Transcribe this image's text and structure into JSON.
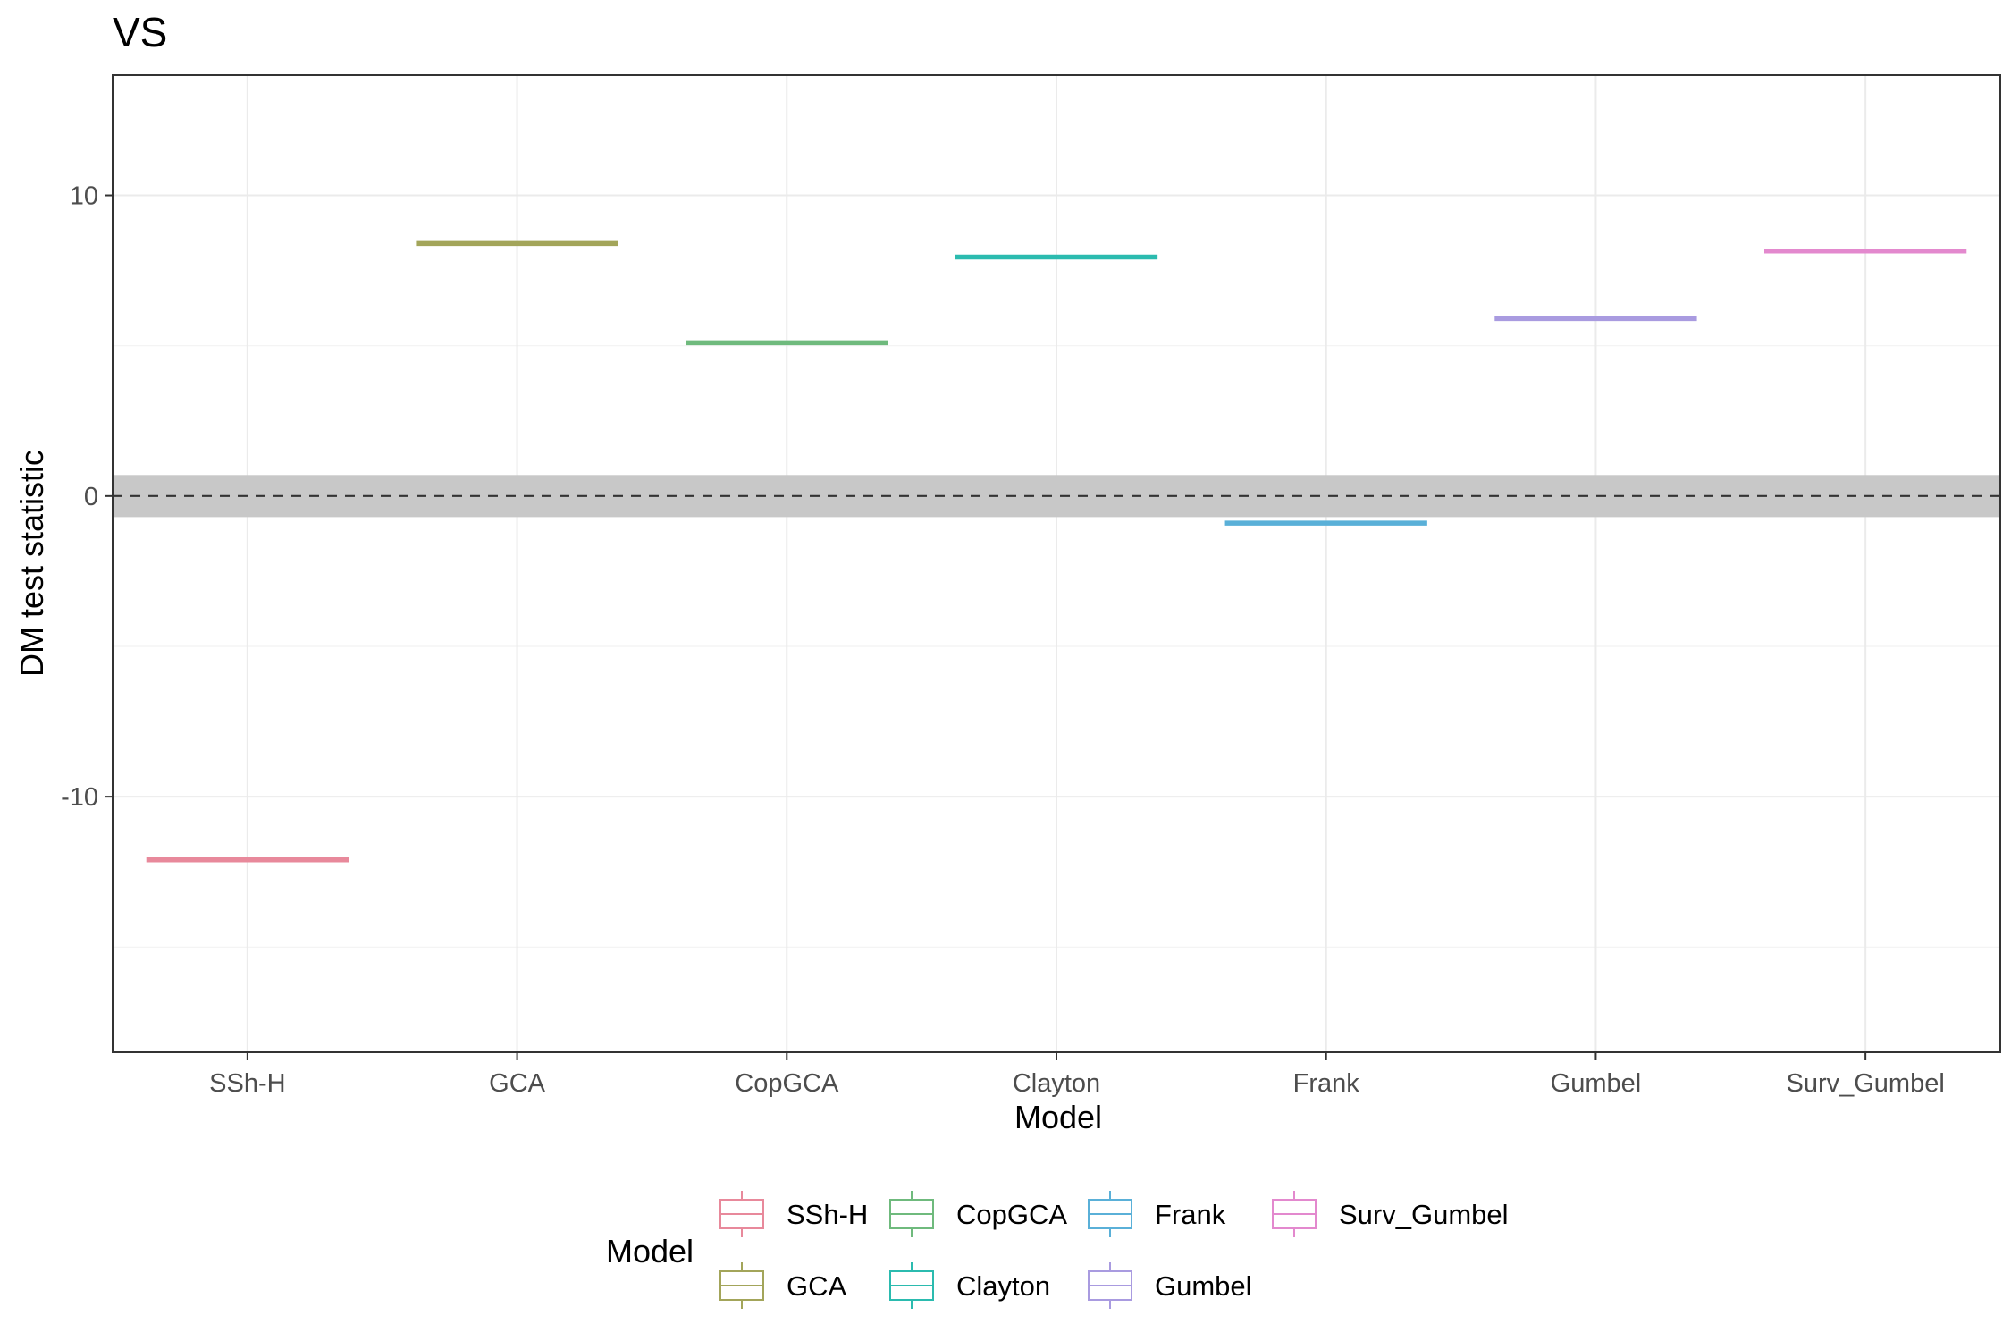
{
  "chart_data": {
    "type": "boxplot",
    "title": "VS",
    "xlabel": "Model",
    "ylabel": "DM test statistic",
    "categories": [
      "SSh-H",
      "GCA",
      "CopGCA",
      "Clayton",
      "Frank",
      "Gumbel",
      "Surv_Gumbel"
    ],
    "values": [
      -12.1,
      8.4,
      5.1,
      7.95,
      -0.9,
      5.9,
      8.15
    ],
    "colors": [
      "#E8899B",
      "#A3A55A",
      "#6FBA7D",
      "#2BBBAF",
      "#5AB0D8",
      "#A99BE0",
      "#E389CE"
    ],
    "ylim": [
      -18.5,
      14
    ],
    "yticks": [
      -10,
      0,
      10
    ],
    "yticks_minor": [
      -15,
      -5,
      5
    ],
    "reference_line": 0,
    "reference_band": [
      -0.7,
      0.7
    ],
    "grid": true,
    "legend": {
      "title": "Model",
      "position": "bottom",
      "entries": [
        "SSh-H",
        "GCA",
        "CopGCA",
        "Clayton",
        "Frank",
        "Gumbel",
        "Surv_Gumbel"
      ]
    }
  }
}
